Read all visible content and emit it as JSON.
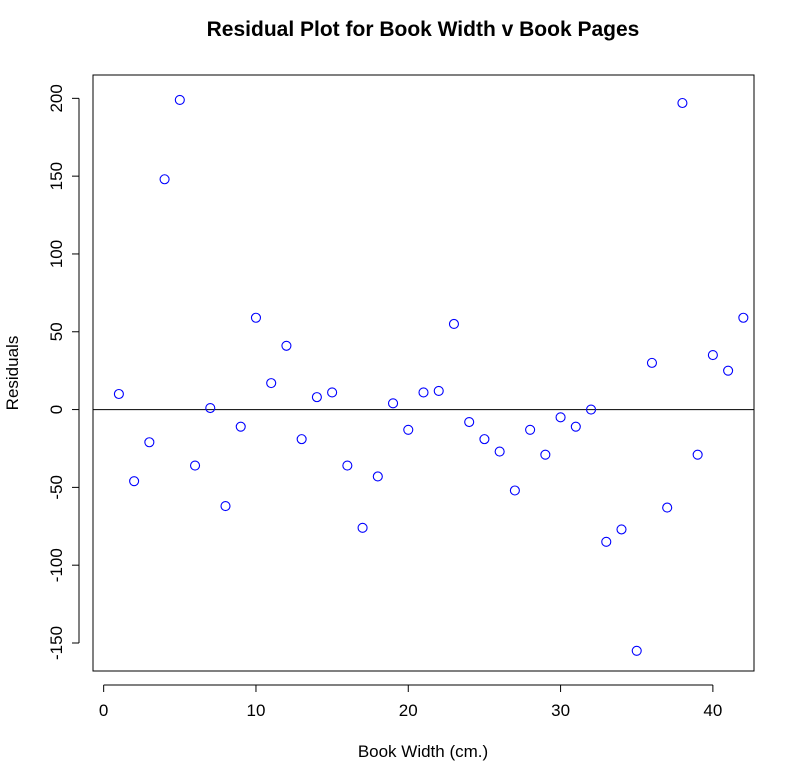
{
  "chart_data": {
    "type": "scatter",
    "title": "Residual Plot for Book Width v Book Pages",
    "xlabel": "Book Width (cm.)",
    "ylabel": "Residuals",
    "xlim": [
      -0.7,
      42.7
    ],
    "ylim": [
      -168,
      215
    ],
    "x_ticks": [
      0,
      10,
      20,
      30,
      40
    ],
    "x_tick_labels": [
      "0",
      "10",
      "20",
      "30",
      "40"
    ],
    "y_ticks": [
      -150,
      -100,
      -50,
      0,
      50,
      100,
      150,
      200
    ],
    "y_tick_labels": [
      "-150",
      "-100",
      "-50",
      "0",
      "50",
      "100",
      "150",
      "200"
    ],
    "reference_line_y": 0,
    "grid": false,
    "marker": "open-circle",
    "marker_color": "#0000ff",
    "series": [
      {
        "x": [
          1,
          2,
          3,
          4,
          5,
          6,
          7,
          8,
          9,
          10,
          11,
          12,
          13,
          14,
          15,
          16,
          17,
          18,
          19,
          20,
          21,
          22,
          23,
          24,
          25,
          26,
          27,
          28,
          29,
          30,
          31,
          32,
          33,
          34,
          35,
          36,
          37,
          38,
          39,
          40,
          41,
          42
        ],
        "y": [
          10,
          -46,
          -21,
          148,
          199,
          -36,
          1,
          -62,
          -11,
          59,
          17,
          41,
          -19,
          8,
          11,
          -36,
          -76,
          -43,
          4,
          -13,
          11,
          12,
          55,
          -8,
          -19,
          -27,
          -52,
          -13,
          -29,
          -5,
          -11,
          0,
          -85,
          -77,
          -155,
          30,
          -63,
          197,
          -29,
          35,
          25,
          59
        ]
      }
    ]
  }
}
